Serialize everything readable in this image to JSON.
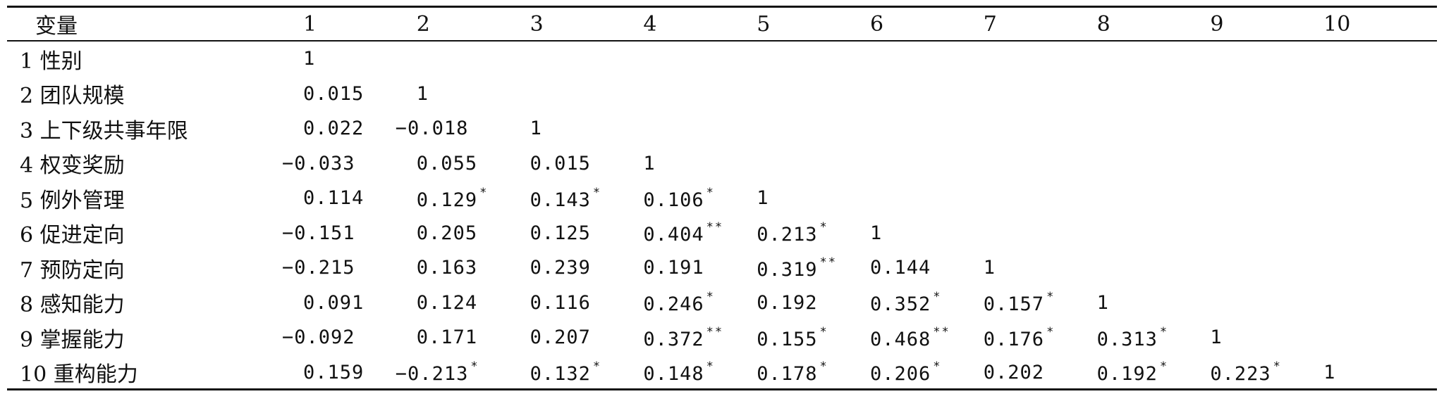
{
  "table": {
    "columns": [
      "变量",
      "1",
      "2",
      "3",
      "4",
      "5",
      "6",
      "7",
      "8",
      "9",
      "10"
    ],
    "rows": [
      {
        "label": "1 性别",
        "cells": [
          "1",
          "",
          "",
          "",
          "",
          "",
          "",
          "",
          "",
          ""
        ]
      },
      {
        "label": "2 团队规模",
        "cells": [
          "0.015",
          "1",
          "",
          "",
          "",
          "",
          "",
          "",
          "",
          ""
        ]
      },
      {
        "label": "3 上下级共事年限",
        "cells": [
          "0.022",
          "−0.018",
          "1",
          "",
          "",
          "",
          "",
          "",
          "",
          ""
        ]
      },
      {
        "label": "4 权变奖励",
        "cells": [
          "−0.033",
          "0.055",
          "0.015",
          "1",
          "",
          "",
          "",
          "",
          "",
          ""
        ]
      },
      {
        "label": "5 例外管理",
        "cells": [
          "0.114",
          "0.129*",
          "0.143*",
          "0.106*",
          "1",
          "",
          "",
          "",
          "",
          ""
        ]
      },
      {
        "label": "6 促进定向",
        "cells": [
          "−0.151",
          "0.205",
          "0.125",
          "0.404**",
          "0.213*",
          "1",
          "",
          "",
          "",
          ""
        ]
      },
      {
        "label": "7 预防定向",
        "cells": [
          "−0.215",
          "0.163",
          "0.239",
          "0.191",
          "0.319**",
          "0.144",
          "1",
          "",
          "",
          ""
        ]
      },
      {
        "label": "8 感知能力",
        "cells": [
          "0.091",
          "0.124",
          "0.116",
          "0.246*",
          "0.192",
          "0.352*",
          "0.157*",
          "1",
          "",
          ""
        ]
      },
      {
        "label": "9 掌握能力",
        "cells": [
          "−0.092",
          "0.171",
          "0.207",
          "0.372**",
          "0.155*",
          "0.468**",
          "0.176*",
          "0.313*",
          "1",
          ""
        ]
      },
      {
        "label": "10 重构能力",
        "cells": [
          "0.159",
          "−0.213*",
          "0.132*",
          "0.148*",
          "0.178*",
          "0.206*",
          "0.202",
          "0.192*",
          "0.223*",
          "1"
        ]
      }
    ]
  }
}
